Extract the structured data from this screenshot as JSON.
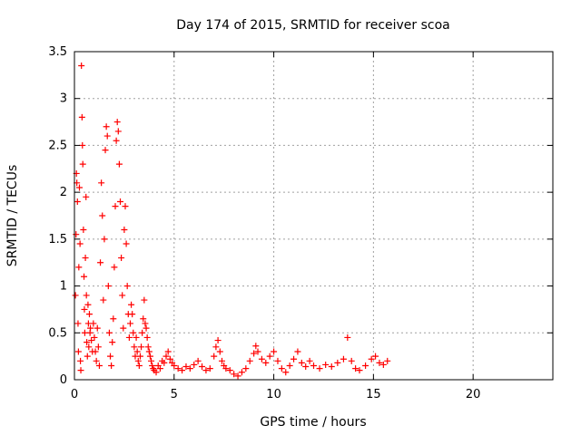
{
  "chart_data": {
    "type": "scatter",
    "title": "Day 174 of 2015, SRMTID for receiver scoa",
    "xlabel": "GPS time / hours",
    "ylabel": "SRMTID / TECUs",
    "xlim": [
      0,
      24
    ],
    "ylim": [
      0,
      3.5
    ],
    "xticks": [
      0,
      5,
      10,
      15,
      20
    ],
    "xtick_labels": [
      "0",
      "5",
      "10",
      "15",
      "20"
    ],
    "yticks": [
      0,
      0.5,
      1,
      1.5,
      2,
      2.5,
      3,
      3.5
    ],
    "ytick_labels": [
      "0",
      "0.5",
      "1",
      "1.5",
      "2",
      "2.5",
      "3",
      "3.5"
    ],
    "grid": true,
    "marker": "+",
    "series": [
      {
        "name": "SRMTID",
        "color": "#ff0000",
        "points": [
          [
            0.05,
            0.9
          ],
          [
            0.08,
            1.55
          ],
          [
            0.1,
            2.2
          ],
          [
            0.12,
            2.1
          ],
          [
            0.15,
            1.9
          ],
          [
            0.18,
            0.6
          ],
          [
            0.2,
            0.3
          ],
          [
            0.22,
            1.2
          ],
          [
            0.25,
            2.05
          ],
          [
            0.28,
            1.45
          ],
          [
            0.3,
            0.2
          ],
          [
            0.32,
            0.1
          ],
          [
            0.35,
            3.35
          ],
          [
            0.38,
            2.8
          ],
          [
            0.4,
            2.5
          ],
          [
            0.42,
            2.3
          ],
          [
            0.45,
            1.6
          ],
          [
            0.48,
            1.1
          ],
          [
            0.5,
            0.75
          ],
          [
            0.52,
            0.5
          ],
          [
            0.55,
            1.3
          ],
          [
            0.58,
            1.95
          ],
          [
            0.6,
            0.9
          ],
          [
            0.62,
            0.4
          ],
          [
            0.65,
            0.25
          ],
          [
            0.68,
            0.8
          ],
          [
            0.7,
            0.6
          ],
          [
            0.72,
            0.35
          ],
          [
            0.75,
            0.7
          ],
          [
            0.78,
            0.5
          ],
          [
            0.8,
            0.55
          ],
          [
            0.85,
            0.42
          ],
          [
            0.9,
            0.3
          ],
          [
            0.95,
            0.6
          ],
          [
            1.0,
            0.45
          ],
          [
            1.05,
            0.3
          ],
          [
            1.1,
            0.2
          ],
          [
            1.15,
            0.55
          ],
          [
            1.2,
            0.35
          ],
          [
            1.25,
            0.15
          ],
          [
            1.3,
            1.25
          ],
          [
            1.35,
            2.1
          ],
          [
            1.4,
            1.75
          ],
          [
            1.45,
            0.85
          ],
          [
            1.5,
            1.5
          ],
          [
            1.55,
            2.45
          ],
          [
            1.6,
            2.7
          ],
          [
            1.65,
            2.6
          ],
          [
            1.7,
            1.0
          ],
          [
            1.75,
            0.5
          ],
          [
            1.8,
            0.25
          ],
          [
            1.85,
            0.15
          ],
          [
            1.9,
            0.4
          ],
          [
            1.95,
            0.65
          ],
          [
            2.0,
            1.2
          ],
          [
            2.05,
            1.85
          ],
          [
            2.1,
            2.55
          ],
          [
            2.15,
            2.75
          ],
          [
            2.2,
            2.65
          ],
          [
            2.25,
            2.3
          ],
          [
            2.3,
            1.9
          ],
          [
            2.35,
            1.3
          ],
          [
            2.4,
            0.9
          ],
          [
            2.45,
            0.55
          ],
          [
            2.5,
            1.6
          ],
          [
            2.55,
            1.85
          ],
          [
            2.6,
            1.45
          ],
          [
            2.65,
            1.0
          ],
          [
            2.7,
            0.7
          ],
          [
            2.75,
            0.45
          ],
          [
            2.8,
            0.6
          ],
          [
            2.85,
            0.8
          ],
          [
            2.9,
            0.7
          ],
          [
            2.95,
            0.5
          ],
          [
            3.0,
            0.35
          ],
          [
            3.05,
            0.25
          ],
          [
            3.1,
            0.45
          ],
          [
            3.15,
            0.3
          ],
          [
            3.2,
            0.2
          ],
          [
            3.25,
            0.15
          ],
          [
            3.3,
            0.25
          ],
          [
            3.35,
            0.35
          ],
          [
            3.4,
            0.5
          ],
          [
            3.45,
            0.65
          ],
          [
            3.5,
            0.85
          ],
          [
            3.55,
            0.6
          ],
          [
            3.6,
            0.55
          ],
          [
            3.65,
            0.45
          ],
          [
            3.7,
            0.35
          ],
          [
            3.75,
            0.3
          ],
          [
            3.8,
            0.25
          ],
          [
            3.85,
            0.2
          ],
          [
            3.9,
            0.15
          ],
          [
            3.95,
            0.12
          ],
          [
            4.0,
            0.1
          ],
          [
            4.1,
            0.08
          ],
          [
            4.2,
            0.15
          ],
          [
            4.3,
            0.12
          ],
          [
            4.4,
            0.2
          ],
          [
            4.5,
            0.18
          ],
          [
            4.6,
            0.25
          ],
          [
            4.7,
            0.3
          ],
          [
            4.8,
            0.22
          ],
          [
            4.9,
            0.18
          ],
          [
            5.0,
            0.15
          ],
          [
            5.2,
            0.12
          ],
          [
            5.4,
            0.1
          ],
          [
            5.6,
            0.14
          ],
          [
            5.8,
            0.12
          ],
          [
            6.0,
            0.16
          ],
          [
            6.2,
            0.2
          ],
          [
            6.4,
            0.14
          ],
          [
            6.6,
            0.1
          ],
          [
            6.8,
            0.12
          ],
          [
            7.0,
            0.25
          ],
          [
            7.1,
            0.35
          ],
          [
            7.2,
            0.42
          ],
          [
            7.3,
            0.3
          ],
          [
            7.4,
            0.2
          ],
          [
            7.5,
            0.15
          ],
          [
            7.6,
            0.12
          ],
          [
            7.8,
            0.1
          ],
          [
            8.0,
            0.06
          ],
          [
            8.2,
            0.04
          ],
          [
            8.4,
            0.08
          ],
          [
            8.6,
            0.12
          ],
          [
            8.8,
            0.2
          ],
          [
            9.0,
            0.28
          ],
          [
            9.1,
            0.36
          ],
          [
            9.2,
            0.3
          ],
          [
            9.4,
            0.22
          ],
          [
            9.6,
            0.18
          ],
          [
            9.8,
            0.25
          ],
          [
            10.0,
            0.3
          ],
          [
            10.2,
            0.2
          ],
          [
            10.4,
            0.12
          ],
          [
            10.6,
            0.08
          ],
          [
            10.8,
            0.15
          ],
          [
            11.0,
            0.22
          ],
          [
            11.2,
            0.3
          ],
          [
            11.4,
            0.18
          ],
          [
            11.6,
            0.14
          ],
          [
            11.8,
            0.2
          ],
          [
            12.0,
            0.15
          ],
          [
            12.3,
            0.12
          ],
          [
            12.6,
            0.16
          ],
          [
            12.9,
            0.14
          ],
          [
            13.2,
            0.18
          ],
          [
            13.5,
            0.22
          ],
          [
            13.7,
            0.45
          ],
          [
            13.9,
            0.2
          ],
          [
            14.1,
            0.12
          ],
          [
            14.3,
            0.1
          ],
          [
            14.6,
            0.15
          ],
          [
            14.9,
            0.22
          ],
          [
            15.1,
            0.25
          ],
          [
            15.3,
            0.18
          ],
          [
            15.5,
            0.16
          ],
          [
            15.7,
            0.2
          ]
        ]
      }
    ]
  }
}
